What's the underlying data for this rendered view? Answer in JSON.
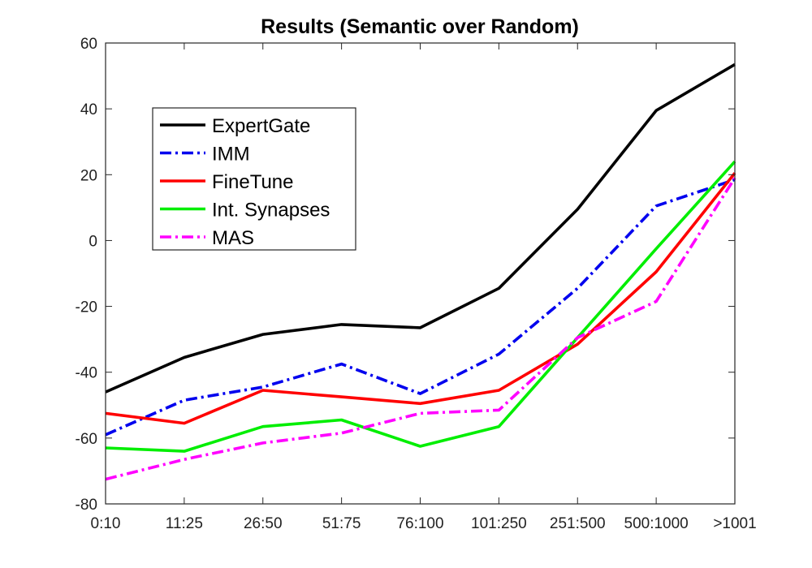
{
  "chart_data": {
    "type": "line",
    "title": "Results (Semantic over Random)",
    "xlabel": "",
    "ylabel": "",
    "categories": [
      "0:10",
      "11:25",
      "26:50",
      "51:75",
      "76:100",
      "101:250",
      "251:500",
      "500:1000",
      ">1001"
    ],
    "ylim": [
      -80,
      60
    ],
    "yticks": [
      "60",
      "40",
      "20",
      "0",
      "-20",
      "-40",
      "-60",
      "-80"
    ],
    "legend_position": "top-left",
    "grid": false,
    "series": [
      {
        "name": "ExpertGate",
        "color": "#000000",
        "dash": "solid",
        "values": [
          -46,
          -35.5,
          -28.5,
          -25.5,
          -26.5,
          -14.5,
          9.5,
          39.5,
          53.5
        ]
      },
      {
        "name": "IMM",
        "color": "#0000ee",
        "dash": "dashdot",
        "values": [
          -59,
          -48.5,
          -44.5,
          -37.5,
          -46.5,
          -34.5,
          -14.5,
          10.5,
          18.5
        ]
      },
      {
        "name": "FineTune",
        "color": "#ff0000",
        "dash": "solid",
        "values": [
          -52.5,
          -55.5,
          -45.5,
          -47.5,
          -49.5,
          -45.5,
          -31.5,
          -9.5,
          20.5
        ]
      },
      {
        "name": "Int. Synapses",
        "color": "#00ee00",
        "dash": "solid",
        "values": [
          -63,
          -64,
          -56.5,
          -54.5,
          -62.5,
          -56.5,
          -29.5,
          -2.5,
          24
        ]
      },
      {
        "name": "MAS",
        "color": "#ff00ff",
        "dash": "dashdot",
        "values": [
          -72.5,
          -66.5,
          -61.5,
          -58.5,
          -52.5,
          -51.5,
          -29.5,
          -18.5,
          19
        ]
      }
    ]
  }
}
